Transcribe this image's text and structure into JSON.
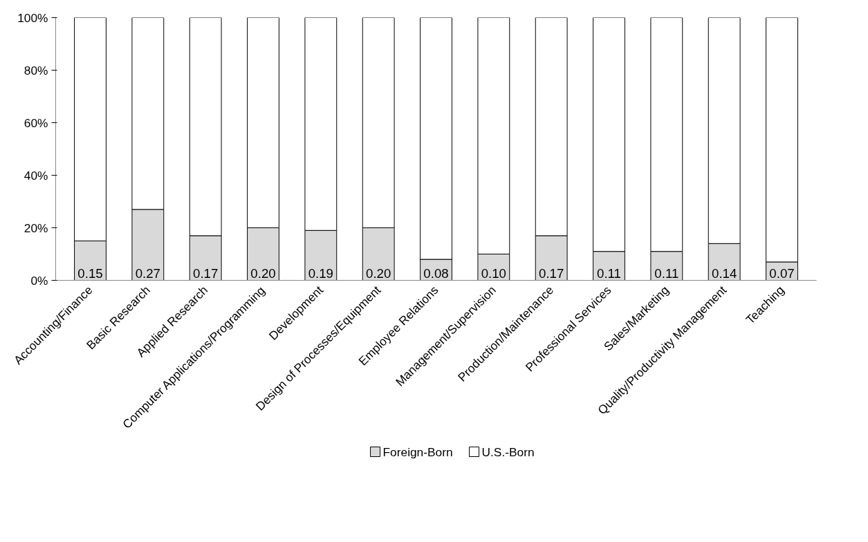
{
  "chart_data": {
    "type": "bar",
    "stacked": true,
    "categories": [
      "Accounting/Finance",
      "Basic Research",
      "Applied Research",
      "Computer Applications/Programming",
      "Development",
      "Design of Processes/Equipment",
      "Employee Relations",
      "Management/Supervision",
      "Production/Maintenance",
      "Professional Services",
      "Sales/Marketing",
      "Quality/Productivity Management",
      "Teaching"
    ],
    "series": [
      {
        "name": "Foreign-Born",
        "color": "#d9d9d9",
        "values": [
          0.15,
          0.27,
          0.17,
          0.2,
          0.19,
          0.2,
          0.08,
          0.1,
          0.17,
          0.11,
          0.11,
          0.14,
          0.07
        ],
        "value_labels": [
          "0.15",
          "0.27",
          "0.17",
          "0.20",
          "0.19",
          "0.20",
          "0.08",
          "0.10",
          "0.17",
          "0.11",
          "0.11",
          "0.14",
          "0.07"
        ]
      },
      {
        "name": "U.S.-Born",
        "color": "#ffffff",
        "values": [
          0.85,
          0.73,
          0.83,
          0.8,
          0.81,
          0.8,
          0.92,
          0.9,
          0.83,
          0.89,
          0.89,
          0.86,
          0.93
        ]
      }
    ],
    "ylim": [
      0,
      1
    ],
    "yticks": [
      {
        "value": 0,
        "label": "0%"
      },
      {
        "value": 0.2,
        "label": "20%"
      },
      {
        "value": 0.4,
        "label": "40%"
      },
      {
        "value": 0.6,
        "label": "60%"
      },
      {
        "value": 0.8,
        "label": "80%"
      },
      {
        "value": 1,
        "label": "100%"
      }
    ],
    "grid": false,
    "legend": "bottom"
  }
}
